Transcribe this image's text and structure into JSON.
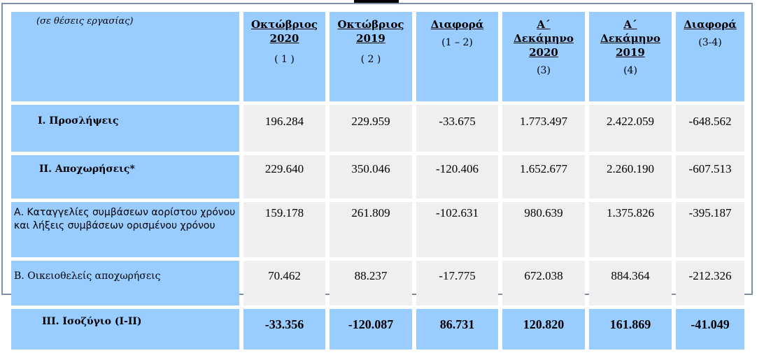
{
  "header": {
    "corner": "(σε θέσεις εργασίας)",
    "columns": [
      {
        "title_lines": [
          "Οκτώβριος",
          "2020"
        ],
        "sub": "( 1 )"
      },
      {
        "title_lines": [
          "Οκτώβριος",
          "2019"
        ],
        "sub": "( 2 )"
      },
      {
        "title_lines": [
          "Διαφορά"
        ],
        "sub": "(1 – 2)"
      },
      {
        "title_lines": [
          "Α΄",
          "Δεκάμηνο",
          "2020"
        ],
        "sub": "(3)"
      },
      {
        "title_lines": [
          "Α΄",
          "Δεκάμηνο",
          "2019"
        ],
        "sub": "(4)"
      },
      {
        "title_lines": [
          "Διαφορά"
        ],
        "sub": "(3-4)"
      }
    ]
  },
  "rows": [
    {
      "label": "Ι. Προσλήψεις",
      "values": [
        "196.284",
        "229.959",
        "-33.675",
        "1.773.497",
        "2.422.059",
        "-648.562"
      ]
    },
    {
      "label": "ΙΙ. Αποχωρήσεις*",
      "values": [
        "229.640",
        "350.046",
        "-120.406",
        "1.652.677",
        "2.260.190",
        "-607.513"
      ]
    },
    {
      "label": "Α. Καταγγελίες συμβάσεων αορίστου χρόνου  και λήξεις συμβάσεων ορισμένου χρόνου",
      "values": [
        "159.178",
        "261.809",
        "-102.631",
        "980.639",
        "1.375.826",
        "-395.187"
      ]
    },
    {
      "label": "Β. Οικειοθελείς  αποχωρήσεις",
      "values": [
        "70.462",
        "88.237",
        "-17.775",
        "672.038",
        "884.364",
        "-212.326"
      ]
    },
    {
      "label": "ΙΙΙ. Ισοζύγιο (Ι-ΙΙ)",
      "values": [
        "-33.356",
        "-120.087",
        "86.731",
        "120.820",
        "161.869",
        "-41.049"
      ]
    }
  ]
}
